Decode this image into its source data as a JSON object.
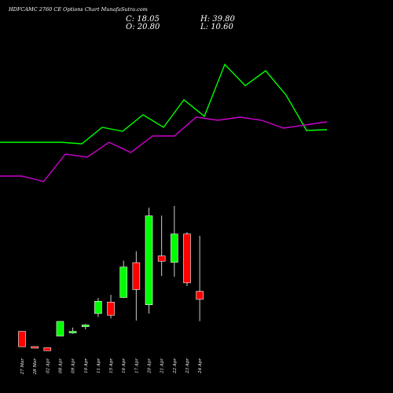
{
  "header": {
    "title": "HDFCAMC 2760  CE Options  Chart MunafaSutra.com",
    "c_text": "C: 18.05",
    "o_text": "O: 20.80",
    "h_text": "H: 39.80",
    "l_text": "L: 10.60"
  },
  "chart_data": {
    "type": "candlestick",
    "title": "HDFCAMC 2760  CE Options  Chart MunafaSutra.com",
    "categories": [
      "27 Mar",
      "28 Mar",
      "02 Apr",
      "08 Apr",
      "09 Apr",
      "10 Apr",
      "11 Apr",
      "15 Apr",
      "16 Apr",
      "17 Apr",
      "20 Apr",
      "21 Apr",
      "22 Apr",
      "23 Apr",
      "24 Apr"
    ],
    "candles": [
      {
        "o": 7.1,
        "h": 7.1,
        "l": 1.85,
        "c": 1.85
      },
      {
        "o": 1.9,
        "h": 1.9,
        "l": 1.6,
        "c": 1.7
      },
      {
        "o": 1.5,
        "h": 1.6,
        "l": 0.5,
        "c": 0.5
      },
      {
        "o": 5.5,
        "h": 10.6,
        "l": 5.5,
        "c": 10.5
      },
      {
        "o": 6.8,
        "h": 8.4,
        "l": 6.3,
        "c": 7.1
      },
      {
        "o": 8.7,
        "h": 9.6,
        "l": 7.8,
        "c": 9.3
      },
      {
        "o": 13.2,
        "h": 18.5,
        "l": 12.0,
        "c": 17.4
      },
      {
        "o": 17.1,
        "h": 19.6,
        "l": 11.5,
        "c": 12.6
      },
      {
        "o": 18.7,
        "h": 31.3,
        "l": 18.5,
        "c": 29.1
      },
      {
        "o": 30.6,
        "h": 34.5,
        "l": 10.8,
        "c": 21.4
      },
      {
        "o": 16.2,
        "h": 49.4,
        "l": 13.2,
        "c": 46.6
      },
      {
        "o": 32.9,
        "h": 46.7,
        "l": 26.0,
        "c": 31.1
      },
      {
        "o": 30.7,
        "h": 50.0,
        "l": 25.8,
        "c": 40.4
      },
      {
        "o": 40.4,
        "h": 41.0,
        "l": 22.6,
        "c": 23.7
      },
      {
        "o": 20.8,
        "h": 39.8,
        "l": 10.6,
        "c": 18.05
      }
    ],
    "line_series": [
      {
        "color": "#00ff00",
        "values": [
          181,
          181,
          181,
          181,
          183,
          162,
          167,
          146,
          162,
          127,
          148,
          82,
          109,
          90,
          121,
          166,
          165
        ]
      },
      {
        "color": "#cc00cc",
        "values": [
          224,
          224,
          231,
          196,
          200,
          181,
          194,
          173,
          173,
          149,
          153,
          149,
          153,
          163,
          159,
          155
        ]
      }
    ],
    "line_note": "",
    "colors": {
      "up": "#00ff00",
      "down": "#ff0000",
      "background": "#000000"
    },
    "grid": false
  }
}
